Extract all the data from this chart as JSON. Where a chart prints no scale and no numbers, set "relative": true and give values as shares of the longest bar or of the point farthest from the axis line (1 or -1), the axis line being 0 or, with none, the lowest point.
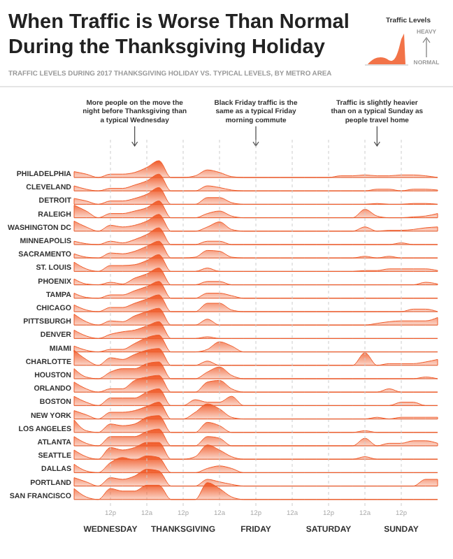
{
  "chart_data": [
    {
      "type": "area",
      "relative": true,
      "title": "When Traffic is Worse Than Normal During the Thanksgiving Holiday",
      "subtitle": "TRAFFIC LEVELS DURING 2017 THANKSGIVING HOLIDAY VS. TYPICAL LEVELS, BY METRO AREA",
      "legend_title": "Traffic Levels",
      "annotations": [
        "More people on the move the night before Thanksgiving than a typical Wednesday",
        "Black Friday traffic is the same as a typical Friday morning commute",
        "Traffic is slightly heavier than on a typical Sunday as people travel home",
        "HEAVY",
        "NORMAL"
      ],
      "categories": [
        null,
        null,
        null,
        null,
        null,
        null,
        null,
        null,
        null,
        null,
        null,
        null,
        null,
        null,
        null,
        null,
        null,
        null,
        null,
        null,
        null,
        null,
        null,
        null,
        null,
        null,
        null,
        null,
        null,
        null,
        null
      ],
      "series": [
        {
          "name": "PHILADELPHIA",
          "color": "#f05a28",
          "values": [
            0.35,
            0.2,
            0,
            0.2,
            0.2,
            0.3,
            0.6,
            1,
            0,
            0,
            0.1,
            0.45,
            0.3,
            0.05,
            0,
            0,
            0,
            0,
            0,
            0,
            0,
            0,
            0.1,
            0.1,
            0.15,
            0.1,
            0.1,
            0.15,
            0.15,
            0.1,
            0
          ]
        }
      ]
    },
    {
      "type": "area",
      "relative": true,
      "categories": [
        null,
        null,
        null,
        null,
        null,
        null,
        null,
        null,
        null,
        null,
        null,
        null,
        null,
        null,
        null,
        null,
        null,
        null,
        null,
        null,
        null,
        null,
        null,
        null,
        null,
        null,
        null,
        null,
        null,
        null,
        null
      ],
      "series": [
        {
          "name": "CLEVELAND",
          "color": "#f05a28",
          "values": [
            0.3,
            0.1,
            0,
            0.15,
            0.15,
            0.35,
            0.6,
            1,
            0,
            0,
            0,
            0.3,
            0.2,
            0.05,
            0,
            0,
            0,
            0,
            0,
            0,
            0,
            0,
            0,
            0,
            0,
            0.1,
            0.1,
            0,
            0.1,
            0.1,
            0.05
          ]
        }
      ]
    },
    {
      "type": "area",
      "relative": true,
      "categories": [
        null,
        null,
        null,
        null,
        null,
        null,
        null,
        null,
        null,
        null,
        null,
        null,
        null,
        null,
        null,
        null,
        null,
        null,
        null,
        null,
        null,
        null,
        null,
        null,
        null,
        null,
        null,
        null,
        null,
        null,
        null
      ],
      "series": [
        {
          "name": "DETROIT",
          "color": "#f05a28",
          "values": [
            0.35,
            0.2,
            0,
            0.2,
            0.2,
            0.35,
            0.6,
            1,
            0,
            0,
            0,
            0.4,
            0.4,
            0.1,
            0,
            0,
            0,
            0,
            0,
            0,
            0,
            0,
            0,
            0,
            0,
            0.05,
            0,
            0,
            0.05,
            0.05,
            0
          ]
        }
      ]
    },
    {
      "type": "area",
      "relative": true,
      "categories": [
        null,
        null,
        null,
        null,
        null,
        null,
        null,
        null,
        null,
        null,
        null,
        null,
        null,
        null,
        null,
        null,
        null,
        null,
        null,
        null,
        null,
        null,
        null,
        null,
        null,
        null,
        null,
        null,
        null,
        null,
        null
      ],
      "series": [
        {
          "name": "RALEIGH",
          "color": "#f05a28",
          "values": [
            0.75,
            0.4,
            0,
            0.25,
            0.25,
            0.4,
            0.6,
            1,
            0,
            0,
            0,
            0.25,
            0.4,
            0.1,
            0,
            0,
            0,
            0,
            0,
            0,
            0,
            0,
            0,
            0,
            0.5,
            0.1,
            0,
            0,
            0.05,
            0.1,
            0.25
          ]
        }
      ]
    },
    {
      "type": "area",
      "relative": true,
      "categories": [
        null,
        null,
        null,
        null,
        null,
        null,
        null,
        null,
        null,
        null,
        null,
        null,
        null,
        null,
        null,
        null,
        null,
        null,
        null,
        null,
        null,
        null,
        null,
        null,
        null,
        null,
        null,
        null,
        null,
        null,
        null
      ],
      "series": [
        {
          "name": "WASHINGTON DC",
          "color": "#f05a28",
          "values": [
            0.6,
            0.25,
            0,
            0.35,
            0.25,
            0.35,
            0.6,
            1,
            0,
            0,
            0,
            0.25,
            0.55,
            0.1,
            0,
            0,
            0,
            0,
            0,
            0,
            0,
            0,
            0,
            0,
            0.25,
            0,
            0.05,
            0.05,
            0.1,
            0.2,
            0.25
          ]
        }
      ]
    },
    {
      "type": "area",
      "relative": true,
      "categories": [
        null,
        null,
        null,
        null,
        null,
        null,
        null,
        null,
        null,
        null,
        null,
        null,
        null,
        null,
        null,
        null,
        null,
        null,
        null,
        null,
        null,
        null,
        null,
        null,
        null,
        null,
        null,
        null,
        null,
        null,
        null
      ],
      "series": [
        {
          "name": "MINNEAPOLIS",
          "color": "#f05a28",
          "values": [
            0.2,
            0.05,
            0,
            0.2,
            0.1,
            0.3,
            0.6,
            1,
            0,
            0,
            0,
            0.2,
            0.2,
            0,
            0,
            0,
            0,
            0,
            0,
            0,
            0,
            0,
            0,
            0,
            0,
            0,
            0,
            0.1,
            0,
            0,
            0
          ]
        }
      ]
    },
    {
      "type": "area",
      "relative": true,
      "categories": [
        null,
        null,
        null,
        null,
        null,
        null,
        null,
        null,
        null,
        null,
        null,
        null,
        null,
        null,
        null,
        null,
        null,
        null,
        null,
        null,
        null,
        null,
        null,
        null,
        null,
        null,
        null,
        null,
        null,
        null,
        null
      ],
      "series": [
        {
          "name": "SACRAMENTO",
          "color": "#f05a28",
          "values": [
            0.25,
            0.05,
            0,
            0.3,
            0.25,
            0.4,
            0.7,
            1,
            0,
            0,
            0.05,
            0.45,
            0.4,
            0.05,
            0,
            0,
            0,
            0,
            0,
            0,
            0,
            0,
            0,
            0,
            0.1,
            0,
            0.1,
            0,
            0,
            0,
            0
          ]
        }
      ]
    },
    {
      "type": "area",
      "relative": true,
      "categories": [
        null,
        null,
        null,
        null,
        null,
        null,
        null,
        null,
        null,
        null,
        null,
        null,
        null,
        null,
        null,
        null,
        null,
        null,
        null,
        null,
        null,
        null,
        null,
        null,
        null,
        null,
        null,
        null,
        null,
        null,
        null
      ],
      "series": [
        {
          "name": "ST. LOUIS",
          "color": "#f05a28",
          "values": [
            0.55,
            0.15,
            0,
            0.35,
            0.35,
            0.4,
            0.65,
            1,
            0,
            0,
            0,
            0.2,
            0,
            0,
            0,
            0,
            0,
            0,
            0,
            0,
            0,
            0,
            0,
            0,
            0.05,
            0.05,
            0.15,
            0.15,
            0.15,
            0.15,
            0.05
          ]
        }
      ]
    },
    {
      "type": "area",
      "relative": true,
      "categories": [
        null,
        null,
        null,
        null,
        null,
        null,
        null,
        null,
        null,
        null,
        null,
        null,
        null,
        null,
        null,
        null,
        null,
        null,
        null,
        null,
        null,
        null,
        null,
        null,
        null,
        null,
        null,
        null,
        null,
        null,
        null
      ],
      "series": [
        {
          "name": "PHOENIX",
          "color": "#f05a28",
          "values": [
            0.35,
            0.05,
            0,
            0.15,
            0.05,
            0.4,
            0.65,
            1,
            0,
            0,
            0,
            0.2,
            0.2,
            0,
            0,
            0,
            0,
            0,
            0,
            0,
            0,
            0,
            0,
            0,
            0,
            0,
            0,
            0,
            0,
            0.15,
            0.05
          ]
        }
      ]
    },
    {
      "type": "area",
      "relative": true,
      "categories": [
        null,
        null,
        null,
        null,
        null,
        null,
        null,
        null,
        null,
        null,
        null,
        null,
        null,
        null,
        null,
        null,
        null,
        null,
        null,
        null,
        null,
        null,
        null,
        null,
        null,
        null,
        null,
        null,
        null,
        null,
        null
      ],
      "series": [
        {
          "name": "TAMPA",
          "color": "#f05a28",
          "values": [
            0.3,
            0.05,
            0,
            0.2,
            0.2,
            0.45,
            0.7,
            1,
            0,
            0,
            0,
            0.3,
            0.3,
            0.15,
            0,
            0,
            0,
            0,
            0,
            0,
            0,
            0,
            0,
            0,
            0,
            0,
            0,
            0,
            0,
            0,
            0
          ]
        }
      ]
    },
    {
      "type": "area",
      "relative": true,
      "categories": [
        null,
        null,
        null,
        null,
        null,
        null,
        null,
        null,
        null,
        null,
        null,
        null,
        null,
        null,
        null,
        null,
        null,
        null,
        null,
        null,
        null,
        null,
        null,
        null,
        null,
        null,
        null,
        null,
        null,
        null,
        null
      ],
      "series": [
        {
          "name": "CHICAGO",
          "color": "#f05a28",
          "values": [
            0.4,
            0.1,
            0,
            0.25,
            0.25,
            0.5,
            0.75,
            1,
            0,
            0,
            0,
            0.5,
            0.5,
            0.1,
            0,
            0,
            0,
            0,
            0,
            0,
            0,
            0,
            0,
            0,
            0,
            0,
            0,
            0,
            0.15,
            0.15,
            0
          ]
        }
      ]
    },
    {
      "type": "area",
      "relative": true,
      "categories": [
        null,
        null,
        null,
        null,
        null,
        null,
        null,
        null,
        null,
        null,
        null,
        null,
        null,
        null,
        null,
        null,
        null,
        null,
        null,
        null,
        null,
        null,
        null,
        null,
        null,
        null,
        null,
        null,
        null,
        null,
        null
      ],
      "series": [
        {
          "name": "PITTSBURGH",
          "color": "#f05a28",
          "values": [
            0.65,
            0.2,
            0,
            0.25,
            0.2,
            0.55,
            0.8,
            1,
            0,
            0,
            0,
            0.35,
            0,
            0,
            0,
            0,
            0,
            0,
            0,
            0,
            0,
            0,
            0,
            0,
            0,
            0.1,
            0.2,
            0.25,
            0.25,
            0.25,
            0.45
          ]
        }
      ]
    },
    {
      "type": "area",
      "relative": true,
      "categories": [
        null,
        null,
        null,
        null,
        null,
        null,
        null,
        null,
        null,
        null,
        null,
        null,
        null,
        null,
        null,
        null,
        null,
        null,
        null,
        null,
        null,
        null,
        null,
        null,
        null,
        null,
        null,
        null,
        null,
        null,
        null
      ],
      "series": [
        {
          "name": "DENVER",
          "color": "#f05a28",
          "values": [
            0.5,
            0.15,
            0,
            0.25,
            0.4,
            0.5,
            0.75,
            1,
            0,
            0,
            0,
            0.1,
            0,
            0,
            0,
            0,
            0,
            0,
            0,
            0,
            0,
            0,
            0,
            0,
            0,
            0,
            0,
            0,
            0,
            0,
            0
          ]
        }
      ]
    },
    {
      "type": "area",
      "relative": true,
      "categories": [
        null,
        null,
        null,
        null,
        null,
        null,
        null,
        null,
        null,
        null,
        null,
        null,
        null,
        null,
        null,
        null,
        null,
        null,
        null,
        null,
        null,
        null,
        null,
        null,
        null,
        null,
        null,
        null,
        null,
        null,
        null
      ],
      "series": [
        {
          "name": "MIAMI",
          "color": "#f05a28",
          "values": [
            0.35,
            0.1,
            0,
            0.15,
            0.15,
            0.5,
            0.85,
            1,
            0,
            0,
            0,
            0.15,
            0.6,
            0.35,
            0,
            0,
            0,
            0,
            0,
            0,
            0,
            0,
            0,
            0,
            0,
            0,
            0,
            0,
            0,
            0,
            0
          ]
        }
      ]
    },
    {
      "type": "area",
      "relative": true,
      "categories": [
        null,
        null,
        null,
        null,
        null,
        null,
        null,
        null,
        null,
        null,
        null,
        null,
        null,
        null,
        null,
        null,
        null,
        null,
        null,
        null,
        null,
        null,
        null,
        null,
        null,
        null,
        null,
        null,
        null,
        null,
        null
      ],
      "series": [
        {
          "name": "CHARLOTTE",
          "color": "#f05a28",
          "values": [
            0.9,
            0.35,
            0,
            0.45,
            0.35,
            0.65,
            0.9,
            1,
            0,
            0,
            0,
            0.25,
            0,
            0,
            0,
            0,
            0,
            0,
            0,
            0,
            0,
            0,
            0,
            0,
            0.75,
            0,
            0.1,
            0.1,
            0.1,
            0.2,
            0.35
          ]
        }
      ]
    },
    {
      "type": "area",
      "relative": true,
      "categories": [
        null,
        null,
        null,
        null,
        null,
        null,
        null,
        null,
        null,
        null,
        null,
        null,
        null,
        null,
        null,
        null,
        null,
        null,
        null,
        null,
        null,
        null,
        null,
        null,
        null,
        null,
        null,
        null,
        null,
        null,
        null
      ],
      "series": [
        {
          "name": "HOUSTON",
          "color": "#f05a28",
          "values": [
            0.6,
            0.1,
            0,
            0.4,
            0.6,
            0.6,
            0.9,
            1,
            0,
            0,
            0,
            0.4,
            0.7,
            0.2,
            0,
            0,
            0,
            0,
            0,
            0,
            0,
            0,
            0,
            0,
            0,
            0,
            0,
            0,
            0,
            0.1,
            0
          ]
        }
      ]
    },
    {
      "type": "area",
      "relative": true,
      "categories": [
        null,
        null,
        null,
        null,
        null,
        null,
        null,
        null,
        null,
        null,
        null,
        null,
        null,
        null,
        null,
        null,
        null,
        null,
        null,
        null,
        null,
        null,
        null,
        null,
        null,
        null,
        null,
        null,
        null,
        null,
        null
      ],
      "series": [
        {
          "name": "ORLANDO",
          "color": "#f05a28",
          "values": [
            0.6,
            0.2,
            0,
            0.2,
            0.2,
            0.7,
            0.9,
            1,
            0,
            0,
            0,
            0.6,
            0.7,
            0.2,
            0,
            0,
            0,
            0,
            0,
            0,
            0,
            0,
            0,
            0,
            0,
            0,
            0.2,
            0,
            0,
            0,
            0
          ]
        }
      ]
    },
    {
      "type": "area",
      "relative": true,
      "categories": [
        null,
        null,
        null,
        null,
        null,
        null,
        null,
        null,
        null,
        null,
        null,
        null,
        null,
        null,
        null,
        null,
        null,
        null,
        null,
        null,
        null,
        null,
        null,
        null,
        null,
        null,
        null,
        null,
        null,
        null,
        null
      ],
      "series": [
        {
          "name": "BOSTON",
          "color": "#f05a28",
          "values": [
            0.55,
            0.2,
            0,
            0.45,
            0.45,
            0.45,
            0.8,
            1,
            0,
            0,
            0.35,
            0.2,
            0.2,
            0.55,
            0,
            0,
            0,
            0,
            0,
            0,
            0,
            0,
            0,
            0,
            0,
            0,
            0,
            0.2,
            0.2,
            0,
            0
          ]
        }
      ]
    },
    {
      "type": "area",
      "relative": true,
      "categories": [
        null,
        null,
        null,
        null,
        null,
        null,
        null,
        null,
        null,
        null,
        null,
        null,
        null,
        null,
        null,
        null,
        null,
        null,
        null,
        null,
        null,
        null,
        null,
        null,
        null,
        null,
        null,
        null,
        null,
        null,
        null
      ],
      "series": [
        {
          "name": "NEW YORK",
          "color": "#f05a28",
          "values": [
            0.5,
            0.25,
            0,
            0.4,
            0.4,
            0.5,
            0.75,
            1,
            0,
            0,
            0.4,
            0.9,
            0.6,
            0.1,
            0,
            0,
            0,
            0,
            0,
            0,
            0,
            0,
            0,
            0,
            0,
            0.1,
            0,
            0.1,
            0.1,
            0.1,
            0.1
          ]
        }
      ]
    },
    {
      "type": "area",
      "relative": true,
      "categories": [
        null,
        null,
        null,
        null,
        null,
        null,
        null,
        null,
        null,
        null,
        null,
        null,
        null,
        null,
        null,
        null,
        null,
        null,
        null,
        null,
        null,
        null,
        null,
        null,
        null,
        null,
        null,
        null,
        null,
        null,
        null
      ],
      "series": [
        {
          "name": "LOS ANGELES",
          "color": "#f05a28",
          "values": [
            0.75,
            0.1,
            0,
            0.5,
            0.4,
            0.5,
            0.9,
            1,
            0,
            0,
            0,
            0.6,
            0.4,
            0,
            0,
            0,
            0,
            0,
            0,
            0,
            0,
            0,
            0,
            0,
            0.1,
            0,
            0,
            0,
            0,
            0,
            0
          ]
        }
      ]
    },
    {
      "type": "area",
      "relative": true,
      "categories": [
        null,
        null,
        null,
        null,
        null,
        null,
        null,
        null,
        null,
        null,
        null,
        null,
        null,
        null,
        null,
        null,
        null,
        null,
        null,
        null,
        null,
        null,
        null,
        null,
        null,
        null,
        null,
        null,
        null,
        null,
        null
      ],
      "series": [
        {
          "name": "ATLANTA",
          "color": "#f05a28",
          "values": [
            0.55,
            0.15,
            0,
            0.55,
            0.55,
            0.55,
            0.85,
            1,
            0,
            0,
            0,
            0.55,
            0.45,
            0,
            0,
            0,
            0,
            0,
            0,
            0,
            0,
            0,
            0,
            0,
            0.45,
            0,
            0.15,
            0.15,
            0.3,
            0.3,
            0.15
          ]
        }
      ]
    },
    {
      "type": "area",
      "relative": true,
      "categories": [
        null,
        null,
        null,
        null,
        null,
        null,
        null,
        null,
        null,
        null,
        null,
        null,
        null,
        null,
        null,
        null,
        null,
        null,
        null,
        null,
        null,
        null,
        null,
        null,
        null,
        null,
        null,
        null,
        null,
        null,
        null
      ],
      "series": [
        {
          "name": "SEATTLE",
          "color": "#f05a28",
          "values": [
            0.55,
            0.15,
            0,
            0.7,
            0.55,
            0.7,
            1,
            1,
            0,
            0,
            0.15,
            0.85,
            0.55,
            0.15,
            0,
            0,
            0,
            0,
            0,
            0,
            0,
            0,
            0,
            0,
            0.15,
            0,
            0,
            0,
            0,
            0,
            0
          ]
        }
      ]
    },
    {
      "type": "area",
      "relative": true,
      "categories": [
        null,
        null,
        null,
        null,
        null,
        null,
        null,
        null,
        null,
        null,
        null,
        null,
        null,
        null,
        null,
        null,
        null,
        null,
        null,
        null,
        null,
        null,
        null,
        null,
        null,
        null,
        null,
        null,
        null,
        null,
        null
      ],
      "series": [
        {
          "name": "DALLAS",
          "color": "#f05a28",
          "values": [
            0.5,
            0.1,
            0,
            0.6,
            0.9,
            0.75,
            1,
            0.9,
            0,
            0,
            0,
            0.25,
            0.4,
            0.25,
            0,
            0,
            0,
            0,
            0,
            0,
            0,
            0,
            0,
            0,
            0,
            0,
            0,
            0,
            0,
            0,
            0
          ]
        }
      ]
    },
    {
      "type": "area",
      "relative": true,
      "categories": [
        null,
        null,
        null,
        null,
        null,
        null,
        null,
        null,
        null,
        null,
        null,
        null,
        null,
        null,
        null,
        null,
        null,
        null,
        null,
        null,
        null,
        null,
        null,
        null,
        null,
        null,
        null,
        null,
        null,
        null,
        null
      ],
      "series": [
        {
          "name": "PORTLAND",
          "color": "#f05a28",
          "values": [
            0.5,
            0.25,
            0,
            0.5,
            0.4,
            0.6,
            1,
            0.9,
            0,
            0,
            0,
            0.4,
            0.25,
            0.1,
            0,
            0,
            0,
            0,
            0,
            0,
            0,
            0,
            0,
            0,
            0,
            0,
            0,
            0,
            0,
            0.4,
            0.4
          ]
        }
      ]
    },
    {
      "type": "area",
      "relative": true,
      "grid": "x",
      "annotations": [
        "WEDNESDAY",
        "THANKSGIVING",
        "FRIDAY",
        "SATURDAY",
        "SUNDAY"
      ],
      "categories": [
        null,
        null,
        null,
        "12p",
        null,
        null,
        "12a",
        null,
        null,
        "12p",
        null,
        null,
        "12a",
        null,
        null,
        "12p",
        null,
        null,
        "12a",
        null,
        null,
        "12p",
        null,
        null,
        "12a",
        null,
        null,
        "12p",
        null,
        null,
        null
      ],
      "series": [
        {
          "name": "SAN FRANCISCO",
          "color": "#f05a28",
          "values": [
            0.65,
            0.15,
            0,
            0.65,
            0.5,
            0.5,
            0.85,
            0.85,
            0,
            0,
            0,
            1,
            0.65,
            0.15,
            0,
            0,
            0,
            0,
            0,
            0,
            0,
            0,
            0,
            0,
            0,
            0,
            0,
            0,
            0,
            0,
            0
          ]
        }
      ]
    }
  ]
}
